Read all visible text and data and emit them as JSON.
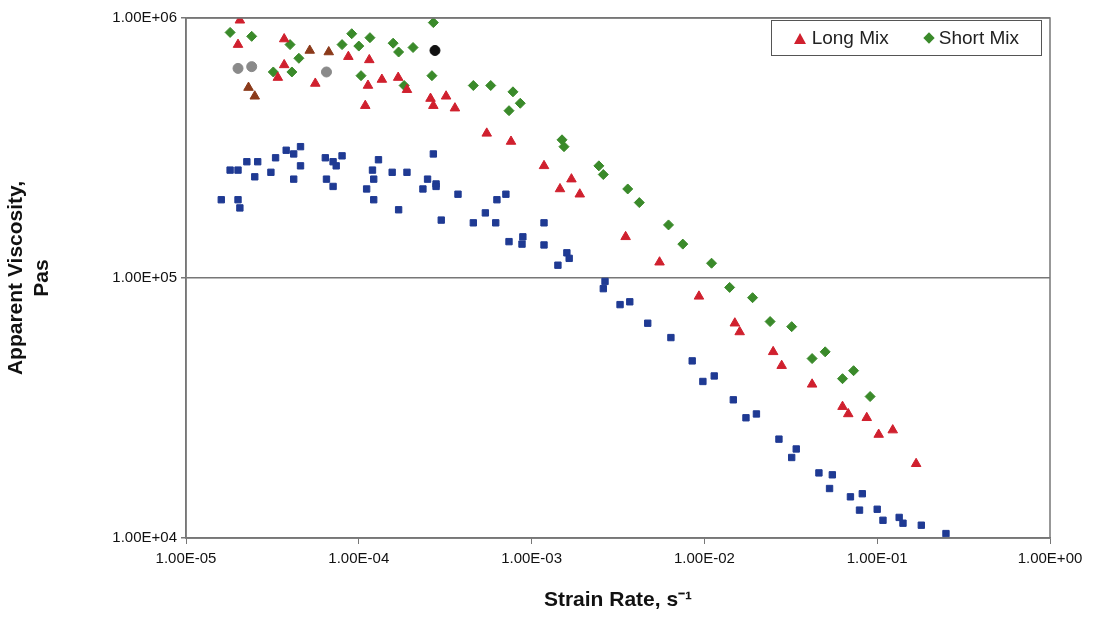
{
  "chart_data": {
    "type": "scatter",
    "xlabel": "Strain Rate, s⁻¹",
    "ylabel": "Apparent Viscosity, Pas",
    "log": "xy",
    "grid": "y",
    "legend": "top right",
    "xlim": [
      1e-05,
      1
    ],
    "xticks": [
      {
        "value": 1e-05,
        "label": "1.00E-05"
      },
      {
        "value": 0.0001,
        "label": "1.00E-04"
      },
      {
        "value": 0.001,
        "label": "1.00E-03"
      },
      {
        "value": 0.01,
        "label": "1.00E-02"
      },
      {
        "value": 0.1,
        "label": "1.00E-01"
      },
      {
        "value": 1,
        "label": "1.00E+00"
      }
    ],
    "ylim": [
      10000,
      1000000
    ],
    "yticks": [
      {
        "value": 10000,
        "label": "1.00E+04"
      },
      {
        "value": 100000,
        "label": "1.00E+05"
      },
      {
        "value": 1000000,
        "label": "1.00E+06"
      }
    ],
    "series": [
      {
        "name": "Long Mix",
        "color": "#d0202e",
        "marker": "triangle",
        "x": [
          2.05e-05,
          2e-05,
          3.7e-05,
          8.7e-05,
          0.000115,
          0.000169,
          0.00032,
          0.00027,
          0.00118,
          0.0019,
          0.015,
          0.025,
          0.042,
          0.068,
          0.102,
          0.168,
          3.7e-05,
          3.4e-05,
          5.6e-05,
          0.000113,
          0.000136,
          0.00019,
          0.000109,
          0.00026,
          0.00036,
          0.00055,
          0.00076,
          0.0017,
          0.00146,
          0.0035,
          0.0055,
          0.0093,
          0.016,
          0.028,
          0.063,
          0.087,
          0.123
        ],
        "values": [
          980000,
          790000,
          830000,
          710000,
          690000,
          590000,
          500000,
          460000,
          270000,
          210000,
          67000,
          52000,
          39000,
          30000,
          25000,
          19300,
          660000,
          590000,
          560000,
          550000,
          580000,
          530000,
          460000,
          490000,
          450000,
          360000,
          335000,
          240000,
          220000,
          144000,
          115000,
          85000,
          62000,
          46000,
          32000,
          29000,
          26000
        ]
      },
      {
        "name": "Short Mix",
        "color": "#3a8a2a",
        "marker": "diamond",
        "x": [
          1.8e-05,
          3.2e-05,
          4.1e-05,
          4.5e-05,
          0.0001,
          0.000103,
          0.000158,
          0.000265,
          0.000183,
          0.00046,
          0.00078,
          0.00074,
          0.0015,
          0.00245,
          0.0036,
          0.0062,
          0.011,
          0.019,
          0.032,
          0.05,
          0.073,
          2.4e-05,
          4e-05,
          8e-05,
          9.1e-05,
          0.000116,
          0.00017,
          0.000206,
          0.00027,
          0.00058,
          0.00086,
          0.00154,
          0.0026,
          0.0042,
          0.0075,
          0.014,
          0.024,
          0.042,
          0.063,
          0.091
        ],
        "values": [
          880000,
          620000,
          620000,
          700000,
          780000,
          600000,
          800000,
          600000,
          550000,
          550000,
          520000,
          440000,
          340000,
          270000,
          220000,
          160000,
          114000,
          84000,
          65000,
          52000,
          44000,
          850000,
          790000,
          790000,
          870000,
          840000,
          740000,
          770000,
          960000,
          550000,
          470000,
          320000,
          250000,
          195000,
          135000,
          92000,
          68000,
          49000,
          41000,
          35000
        ]
      },
      {
        "color": "#1f3a93",
        "marker": "square",
        "x": [
          1.6e-05,
          1.8e-05,
          2e-05,
          2.25e-05,
          2.6e-05,
          2.5e-05,
          3.3e-05,
          3.8e-05,
          4.2e-05,
          4.6e-05,
          2e-05,
          2.05e-05,
          6.4e-05,
          7.1e-05,
          8e-05,
          6.5e-05,
          0.00013,
          0.00012,
          0.000122,
          0.000111,
          0.00019,
          0.00025,
          0.00028,
          0.000235,
          0.000375,
          0.00071,
          0.00054,
          0.00046,
          0.00062,
          0.00118,
          0.00089,
          0.00088,
          0.00118,
          0.0016,
          0.00266,
          0.0026,
          0.0037,
          0.0047,
          0.0064,
          0.0085,
          0.0114,
          0.0147,
          0.02,
          0.027,
          0.034,
          0.046,
          0.055,
          0.07,
          0.082,
          0.1,
          0.134,
          0.18,
          0.25,
          3.1e-05,
          4.2e-05,
          4.6e-05,
          7.1e-05,
          7.4e-05,
          0.000122,
          0.000156,
          0.00017,
          0.00027,
          0.00028,
          0.0003,
          0.00063,
          0.00074,
          0.00142,
          0.00165,
          0.00325,
          0.0098,
          0.0174,
          0.032,
          0.053,
          0.079,
          0.108,
          0.141
        ],
        "values": [
          200000,
          260000,
          260000,
          280000,
          280000,
          245000,
          290000,
          310000,
          300000,
          320000,
          200000,
          186000,
          290000,
          280000,
          295000,
          240000,
          285000,
          260000,
          240000,
          220000,
          255000,
          240000,
          230000,
          220000,
          210000,
          210000,
          178000,
          163000,
          163000,
          163000,
          144000,
          135000,
          134000,
          125000,
          97000,
          91000,
          81000,
          67000,
          59000,
          48000,
          42000,
          34000,
          30000,
          24000,
          22000,
          17800,
          17500,
          14400,
          14800,
          12900,
          12000,
          11200,
          10400,
          255000,
          240000,
          270000,
          225000,
          270000,
          200000,
          255000,
          183000,
          300000,
          225000,
          167000,
          200000,
          138000,
          112000,
          119000,
          79000,
          40000,
          29000,
          20400,
          15500,
          12800,
          11700,
          11400
        ]
      },
      {
        "color": "#8b3a1a",
        "marker": "triangle",
        "x": [
          2.3e-05,
          2.5e-05,
          5.2e-05,
          6.7e-05
        ],
        "values": [
          540000,
          500000,
          750000,
          740000
        ]
      },
      {
        "color": "#8a8a8a",
        "marker": "circle",
        "x": [
          2e-05,
          2.4e-05,
          6.5e-05
        ],
        "values": [
          640000,
          650000,
          620000
        ]
      },
      {
        "color": "#111111",
        "marker": "circle",
        "x": [
          0.000276
        ],
        "values": [
          750000
        ]
      }
    ]
  }
}
